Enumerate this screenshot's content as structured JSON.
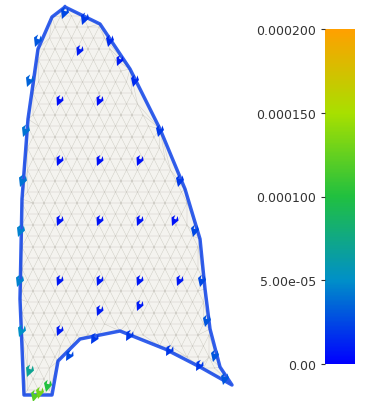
{
  "chart_data": {
    "type": "quiver",
    "xlim": [
      0,
      243
    ],
    "ylim": [
      0,
      402
    ],
    "tick_labels": false,
    "x": [
      38,
      30,
      26,
      23,
      21,
      20,
      22,
      30,
      35,
      40,
      48,
      65,
      85,
      110,
      135,
      160,
      180,
      195,
      202,
      207,
      215,
      225,
      200,
      170,
      130,
      95,
      70,
      60,
      100,
      60,
      100,
      140,
      60,
      100,
      140,
      175,
      60,
      100,
      140,
      180,
      60,
      100,
      140,
      80,
      120
    ],
    "y": [
      362,
      322,
      272,
      222,
      172,
      122,
      72,
      32,
      7,
      10,
      17,
      390,
      384,
      362,
      322,
      272,
      222,
      172,
      122,
      82,
      47,
      24,
      37,
      52,
      67,
      64,
      47,
      302,
      302,
      242,
      242,
      242,
      182,
      182,
      182,
      182,
      122,
      122,
      122,
      122,
      72,
      92,
      97,
      352,
      342
    ],
    "u": [
      -3,
      -3,
      -3,
      -3,
      -3,
      -3,
      -3,
      -3,
      -2,
      -2,
      -2,
      -3,
      -3,
      -2,
      -2,
      -2,
      -2,
      -2,
      -2,
      -2,
      -2,
      -2,
      -4,
      -4,
      -4,
      -4,
      -4,
      -3,
      -3,
      -3,
      -3,
      -3,
      -3,
      -3,
      -3,
      -3,
      -3,
      -3,
      -3,
      -3,
      -3,
      -3,
      -3,
      -3,
      -3
    ],
    "v": [
      -8,
      -8,
      -8,
      -8,
      -8,
      -8,
      -8,
      -8,
      -8,
      -8,
      -8,
      -8,
      -8,
      -8,
      -8,
      -8,
      -8,
      -8,
      -8,
      -8,
      -8,
      -8,
      -7,
      -7,
      -7,
      -7,
      -7,
      -7,
      -7,
      -7,
      -7,
      -7,
      -7,
      -7,
      -7,
      -7,
      -7,
      -7,
      -7,
      -7,
      -7,
      -7,
      -7,
      -7,
      -7
    ],
    "magnitude": [
      3e-05,
      3.5e-05,
      4e-05,
      4e-05,
      4.5e-05,
      4.5e-05,
      5e-05,
      7e-05,
      0.00012,
      0.00013,
      0.0001,
      2.5e-05,
      2e-05,
      1.5e-05,
      1.5e-05,
      2e-05,
      2e-05,
      2.5e-05,
      2.5e-05,
      3e-05,
      3e-05,
      3e-05,
      2e-05,
      2e-05,
      2e-05,
      2e-05,
      2.5e-05,
      5e-06,
      5e-06,
      6e-06,
      6e-06,
      6e-06,
      7e-06,
      7e-06,
      7e-06,
      7e-06,
      8e-06,
      8e-06,
      8e-06,
      8e-06,
      1e-05,
      1e-05,
      1e-05,
      1e-05,
      1e-05
    ],
    "colorbar": {
      "range": [
        0,
        0.0002
      ],
      "ticks": [
        {
          "value": 0,
          "label": "0.00"
        },
        {
          "value": 5e-05,
          "label": "5.00e-05"
        },
        {
          "value": 0.0001,
          "label": "0.000100"
        },
        {
          "value": 0.00015,
          "label": "0.000150"
        },
        {
          "value": 0.0002,
          "label": "0.000200"
        }
      ]
    }
  }
}
